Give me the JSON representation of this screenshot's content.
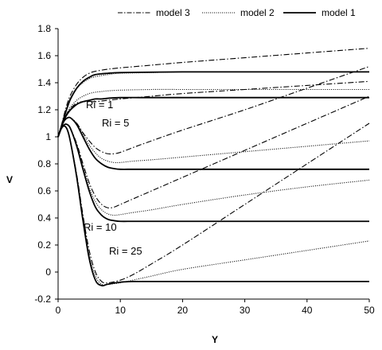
{
  "chart_data": {
    "type": "line",
    "xlabel": "Y",
    "ylabel": "V",
    "xlim": [
      0,
      50
    ],
    "ylim": [
      -0.2,
      1.8
    ],
    "xticks": [
      0,
      10,
      20,
      30,
      40,
      50
    ],
    "yticks": [
      -0.2,
      0,
      0.2,
      0.4,
      0.6,
      0.8,
      1,
      1.2,
      1.4,
      1.6,
      1.8
    ],
    "xtick_labels": [
      "0",
      "10",
      "20",
      "30",
      "40",
      "50"
    ],
    "ytick_labels": [
      "-0.2",
      "0",
      "0.2",
      "0.4",
      "0.6",
      "0.8",
      "1",
      "1.2",
      "1.4",
      "1.6",
      "1.8"
    ],
    "grid": false,
    "legend_position": "top",
    "legend": [
      {
        "label": "model 3",
        "style": "dashdot"
      },
      {
        "label": "model 2",
        "style": "dotted"
      },
      {
        "label": "model 1",
        "style": "solid"
      }
    ],
    "annotations": [
      {
        "text": "Ri = 1",
        "x": 5,
        "y": 1.22
      },
      {
        "text": "Ri = 5",
        "x": 7,
        "y": 1.09
      },
      {
        "text": "Ri = 10",
        "x": 4,
        "y": 0.29
      },
      {
        "text": "Ri = 25",
        "x": 8,
        "y": 0.13
      }
    ],
    "series": [
      {
        "model": "model 3",
        "style": "dashdot",
        "x": [
          0,
          0.5,
          1,
          1.5,
          2,
          3,
          4,
          5,
          6,
          8,
          10,
          15,
          20,
          30,
          40,
          50
        ],
        "y": [
          1.0,
          1.08,
          1.17,
          1.25,
          1.31,
          1.39,
          1.44,
          1.47,
          1.485,
          1.5,
          1.51,
          1.53,
          1.55,
          1.585,
          1.62,
          1.655
        ]
      },
      {
        "model": "model 2",
        "style": "dotted",
        "x": [
          0,
          0.5,
          1,
          1.5,
          2,
          3,
          4,
          5,
          6,
          8,
          10,
          15,
          20,
          30,
          40,
          50
        ],
        "y": [
          1.0,
          1.08,
          1.16,
          1.23,
          1.29,
          1.36,
          1.4,
          1.43,
          1.445,
          1.46,
          1.47,
          1.475,
          1.48,
          1.48,
          1.48,
          1.48
        ]
      },
      {
        "model": "model 1",
        "style": "solid",
        "x": [
          0,
          0.5,
          1,
          1.5,
          2,
          3,
          4,
          5,
          6,
          8,
          10,
          15,
          20,
          30,
          40,
          50
        ],
        "y": [
          1.0,
          1.07,
          1.15,
          1.22,
          1.28,
          1.36,
          1.41,
          1.44,
          1.46,
          1.47,
          1.475,
          1.478,
          1.48,
          1.48,
          1.48,
          1.48
        ]
      },
      {
        "model": "model 3",
        "style": "dashdot",
        "x": [
          0,
          0.5,
          1,
          1.5,
          2,
          3,
          4,
          5,
          6,
          7,
          8,
          10,
          15,
          20,
          30,
          40,
          50
        ],
        "y": [
          1.0,
          1.07,
          1.13,
          1.18,
          1.21,
          1.25,
          1.26,
          1.26,
          1.26,
          1.265,
          1.27,
          1.28,
          1.3,
          1.32,
          1.35,
          1.38,
          1.41
        ]
      },
      {
        "model": "model 2",
        "style": "dotted",
        "x": [
          0,
          0.5,
          1,
          1.5,
          2,
          3,
          4,
          5,
          6,
          7,
          8,
          10,
          15,
          20,
          30,
          40,
          50
        ],
        "y": [
          1.0,
          1.07,
          1.13,
          1.18,
          1.22,
          1.27,
          1.3,
          1.32,
          1.33,
          1.335,
          1.34,
          1.345,
          1.35,
          1.35,
          1.35,
          1.35,
          1.35
        ]
      },
      {
        "model": "model 1",
        "style": "solid",
        "x": [
          0,
          0.5,
          1,
          1.5,
          2,
          3,
          4,
          5,
          6,
          7,
          8,
          10,
          15,
          20,
          30,
          40,
          50
        ],
        "y": [
          1.0,
          1.07,
          1.13,
          1.17,
          1.2,
          1.24,
          1.26,
          1.27,
          1.28,
          1.28,
          1.285,
          1.29,
          1.29,
          1.29,
          1.29,
          1.29,
          1.29
        ]
      },
      {
        "model": "model 3",
        "style": "dashdot",
        "x": [
          0,
          0.5,
          1,
          1.5,
          2,
          3,
          4,
          5,
          6,
          7,
          8,
          9,
          10,
          12,
          15,
          20,
          30,
          40,
          50
        ],
        "y": [
          1.0,
          1.07,
          1.12,
          1.14,
          1.14,
          1.1,
          1.03,
          0.97,
          0.92,
          0.89,
          0.875,
          0.875,
          0.885,
          0.92,
          0.97,
          1.05,
          1.2,
          1.36,
          1.52
        ]
      },
      {
        "model": "model 2",
        "style": "dotted",
        "x": [
          0,
          0.5,
          1,
          1.5,
          2,
          3,
          4,
          5,
          6,
          7,
          8,
          9,
          10,
          12,
          15,
          20,
          30,
          40,
          50
        ],
        "y": [
          1.0,
          1.07,
          1.12,
          1.14,
          1.14,
          1.1,
          1.02,
          0.94,
          0.88,
          0.84,
          0.82,
          0.81,
          0.81,
          0.82,
          0.83,
          0.85,
          0.89,
          0.93,
          0.97
        ]
      },
      {
        "model": "model 1",
        "style": "solid",
        "x": [
          0,
          0.5,
          1,
          1.5,
          2,
          3,
          4,
          5,
          6,
          7,
          8,
          9,
          10,
          12,
          15,
          20,
          30,
          40,
          50
        ],
        "y": [
          1.0,
          1.07,
          1.12,
          1.14,
          1.14,
          1.09,
          1.0,
          0.91,
          0.84,
          0.8,
          0.775,
          0.765,
          0.76,
          0.76,
          0.76,
          0.76,
          0.76,
          0.76,
          0.76
        ]
      },
      {
        "model": "model 3",
        "style": "dashdot",
        "x": [
          0,
          0.5,
          1,
          1.5,
          2,
          3,
          4,
          5,
          6,
          7,
          8,
          9,
          10,
          12,
          15,
          20,
          30,
          40,
          50
        ],
        "y": [
          1.0,
          1.06,
          1.09,
          1.09,
          1.06,
          0.95,
          0.8,
          0.66,
          0.56,
          0.5,
          0.475,
          0.48,
          0.5,
          0.54,
          0.6,
          0.7,
          0.9,
          1.1,
          1.3
        ]
      },
      {
        "model": "model 2",
        "style": "dotted",
        "x": [
          0,
          0.5,
          1,
          1.5,
          2,
          3,
          4,
          5,
          6,
          7,
          8,
          9,
          10,
          12,
          15,
          20,
          30,
          40,
          50
        ],
        "y": [
          1.0,
          1.06,
          1.09,
          1.09,
          1.06,
          0.94,
          0.78,
          0.63,
          0.52,
          0.46,
          0.43,
          0.42,
          0.425,
          0.44,
          0.46,
          0.5,
          0.57,
          0.63,
          0.68
        ]
      },
      {
        "model": "model 1",
        "style": "solid",
        "x": [
          0,
          0.5,
          1,
          1.5,
          2,
          3,
          4,
          5,
          6,
          7,
          8,
          9,
          10,
          12,
          15,
          20,
          30,
          40,
          50
        ],
        "y": [
          1.0,
          1.06,
          1.09,
          1.09,
          1.06,
          0.93,
          0.76,
          0.6,
          0.48,
          0.42,
          0.39,
          0.38,
          0.375,
          0.375,
          0.375,
          0.375,
          0.375,
          0.375,
          0.375
        ]
      },
      {
        "model": "model 3",
        "style": "dashdot",
        "x": [
          0,
          0.5,
          1,
          1.5,
          2,
          3,
          4,
          5,
          6,
          7,
          8,
          10,
          12,
          15,
          20,
          30,
          40,
          50
        ],
        "y": [
          1.0,
          1.06,
          1.08,
          1.05,
          0.96,
          0.72,
          0.42,
          0.16,
          0.0,
          -0.07,
          -0.08,
          -0.06,
          -0.02,
          0.06,
          0.2,
          0.5,
          0.8,
          1.1
        ]
      },
      {
        "model": "model 2",
        "style": "dotted",
        "x": [
          0,
          0.5,
          1,
          1.5,
          2,
          3,
          4,
          5,
          6,
          7,
          8,
          10,
          12,
          15,
          20,
          30,
          40,
          50
        ],
        "y": [
          1.0,
          1.06,
          1.08,
          1.05,
          0.96,
          0.71,
          0.4,
          0.13,
          -0.03,
          -0.09,
          -0.09,
          -0.08,
          -0.06,
          -0.03,
          0.02,
          0.09,
          0.16,
          0.23
        ]
      },
      {
        "model": "model 1",
        "style": "solid",
        "x": [
          0,
          0.5,
          1,
          1.5,
          2,
          3,
          4,
          5,
          6,
          7,
          8,
          10,
          12,
          15,
          20,
          30,
          40,
          50
        ],
        "y": [
          1.0,
          1.06,
          1.08,
          1.05,
          0.96,
          0.7,
          0.38,
          0.1,
          -0.06,
          -0.1,
          -0.09,
          -0.075,
          -0.07,
          -0.07,
          -0.07,
          -0.07,
          -0.07,
          -0.07
        ]
      }
    ]
  }
}
